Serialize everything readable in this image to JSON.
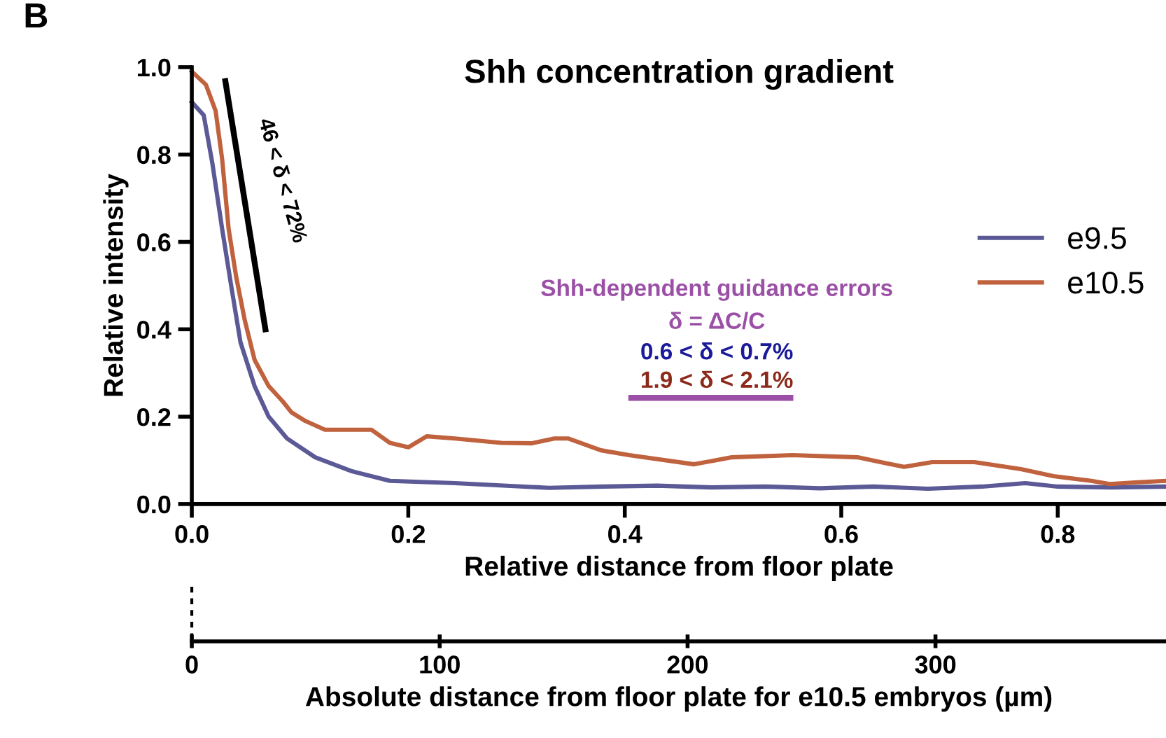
{
  "chart_data": {
    "type": "line",
    "title": "Shh concentration gradient",
    "xlabel": "Relative distance from floor plate",
    "ylabel": "Relative intensity",
    "x2label": "Absolute distance from floor plate for e10.5 embryos (µm)",
    "xlim": [
      0,
      0.9
    ],
    "ylim": [
      0,
      1.0
    ],
    "xticks": [
      {
        "value": 0,
        "label": "0.0"
      },
      0.2,
      0.4,
      0.6,
      0.8
    ],
    "yticks": [
      {
        "value": 0,
        "label": "0.0"
      },
      0.2,
      0.4,
      0.6,
      0.8,
      {
        "value": 1,
        "label": "1.0"
      }
    ],
    "x2lim": [
      0,
      393
    ],
    "x2ticks": [
      0,
      100,
      200,
      300
    ],
    "grid": false,
    "legend": "right",
    "marker": "none",
    "line_style": "solid",
    "annotations": [
      "B",
      "46 < δ < 72%",
      "Shh-dependent guidance errors",
      "δ = ΔC/C",
      "0.6 < δ < 0.7%",
      "1.9 < δ < 2.1%"
    ],
    "series": [
      {
        "color": "#000000",
        "x": [
          0.031,
          0.068
        ],
        "values": [
          0.968,
          0.4
        ]
      },
      {
        "name": "e9.5",
        "color": "#5b5a96",
        "x": [
          0,
          0.011,
          0.019,
          0.028,
          0.037,
          0.045,
          0.058,
          0.071,
          0.088,
          0.114,
          0.148,
          0.183,
          0.243,
          0.33,
          0.38,
          0.43,
          0.48,
          0.53,
          0.58,
          0.63,
          0.68,
          0.73,
          0.77,
          0.8,
          0.85,
          0.9
        ],
        "values": [
          0.92,
          0.89,
          0.78,
          0.63,
          0.49,
          0.37,
          0.27,
          0.2,
          0.15,
          0.107,
          0.075,
          0.053,
          0.048,
          0.037,
          0.04,
          0.042,
          0.038,
          0.04,
          0.036,
          0.04,
          0.035,
          0.04,
          0.048,
          0.04,
          0.038,
          0.04
        ]
      },
      {
        "name": "e10.5",
        "color": "#c0623e",
        "x": [
          0,
          0.013,
          0.022,
          0.028,
          0.034,
          0.041,
          0.049,
          0.058,
          0.071,
          0.084,
          0.092,
          0.105,
          0.123,
          0.14,
          0.166,
          0.183,
          0.2,
          0.217,
          0.243,
          0.286,
          0.314,
          0.335,
          0.348,
          0.378,
          0.404,
          0.464,
          0.499,
          0.555,
          0.615,
          0.658,
          0.684,
          0.723,
          0.766,
          0.796,
          0.831,
          0.848,
          0.874,
          0.9
        ],
        "values": [
          0.99,
          0.96,
          0.9,
          0.79,
          0.63,
          0.52,
          0.42,
          0.33,
          0.27,
          0.235,
          0.21,
          0.19,
          0.17,
          0.17,
          0.17,
          0.14,
          0.13,
          0.155,
          0.15,
          0.14,
          0.139,
          0.15,
          0.15,
          0.123,
          0.112,
          0.091,
          0.107,
          0.112,
          0.107,
          0.085,
          0.096,
          0.096,
          0.08,
          0.064,
          0.053,
          0.046,
          0.05,
          0.053
        ]
      }
    ]
  }
}
